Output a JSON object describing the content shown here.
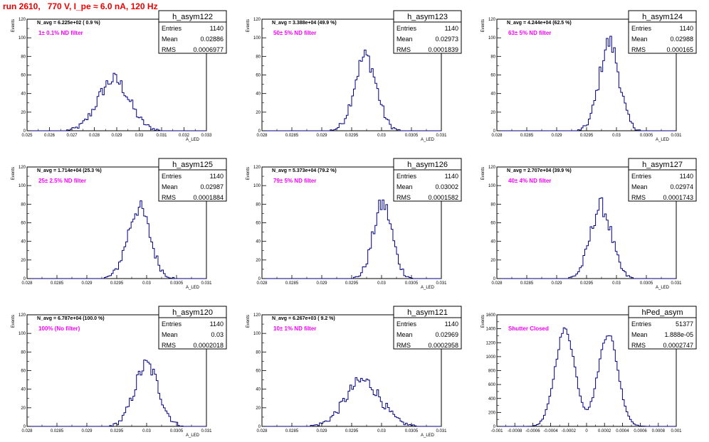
{
  "page": {
    "title": "run 2610,   770 V, I_pe ≈ 6.0 nA, 120 Hz",
    "title_color": "#ee0000",
    "histogram_color": "#000080",
    "annotation_color": "#ff00ff"
  },
  "chart_data": [
    {
      "type": "histogram",
      "name": "h_asym122",
      "ylabel": "Events",
      "xlabel": "A_LED",
      "navg": "N_avg = 6.225e+02 ( 0.9 %)",
      "filter": "1± 0.1% ND filter",
      "stats": [
        [
          "Entries",
          "1140"
        ],
        [
          "Mean",
          "0.02886"
        ],
        [
          "RMS",
          "0.0006977"
        ]
      ],
      "xlim": [
        0.025,
        0.033
      ],
      "ylim": [
        0,
        120
      ],
      "xticks": [
        "0.025",
        "0.026",
        "0.027",
        "0.028",
        "0.029",
        "0.03",
        "0.031",
        "0.032",
        "0.033"
      ],
      "yticks": [
        "0",
        "20",
        "40",
        "60",
        "80",
        "100",
        "120"
      ],
      "mean": 0.02886,
      "rms": 0.0006977,
      "peak": 55
    },
    {
      "type": "histogram",
      "name": "h_asym123",
      "ylabel": "Events",
      "xlabel": "A_LED",
      "navg": "N_avg = 3.388e+04 (49.9 %)",
      "filter": "50± 5% ND filter",
      "stats": [
        [
          "Entries",
          "1140"
        ],
        [
          "Mean",
          "0.02973"
        ],
        [
          "RMS",
          "0.0001839"
        ]
      ],
      "xlim": [
        0.028,
        0.031
      ],
      "ylim": [
        0,
        120
      ],
      "xticks": [
        "0.028",
        "0.0285",
        "0.029",
        "0.0295",
        "0.03",
        "0.0305",
        "0.031"
      ],
      "yticks": [
        "0",
        "20",
        "40",
        "60",
        "80",
        "100",
        "120"
      ],
      "mean": 0.02973,
      "rms": 0.0001839,
      "peak": 80
    },
    {
      "type": "histogram",
      "name": "h_asym124",
      "ylabel": "Events",
      "xlabel": "A_LED",
      "navg": "N_avg = 4.244e+04 (62.5 %)",
      "filter": "63± 5% ND filter",
      "stats": [
        [
          "Entries",
          "1140"
        ],
        [
          "Mean",
          "0.02988"
        ],
        [
          "RMS",
          "0.000165"
        ]
      ],
      "xlim": [
        0.028,
        0.031
      ],
      "ylim": [
        0,
        120
      ],
      "xticks": [
        "0.028",
        "0.0285",
        "0.029",
        "0.0295",
        "0.03",
        "0.0305",
        "0.031"
      ],
      "yticks": [
        "0",
        "20",
        "40",
        "60",
        "80",
        "100",
        "120"
      ],
      "mean": 0.02988,
      "rms": 0.000165,
      "peak": 95
    },
    {
      "type": "histogram",
      "name": "h_asym125",
      "ylabel": "Events",
      "xlabel": "A_LED",
      "navg": "N_avg = 1.714e+04 (25.3 %)",
      "filter": "25± 2.5% ND filter",
      "stats": [
        [
          "Entries",
          "1140"
        ],
        [
          "Mean",
          "0.02987"
        ],
        [
          "RMS",
          "0.0001884"
        ]
      ],
      "xlim": [
        0.028,
        0.031
      ],
      "ylim": [
        0,
        120
      ],
      "xticks": [
        "0.028",
        "0.0285",
        "0.029",
        "0.0295",
        "0.03",
        "0.0305",
        "0.031"
      ],
      "yticks": [
        "0",
        "20",
        "40",
        "60",
        "80",
        "100",
        "120"
      ],
      "mean": 0.02987,
      "rms": 0.0001884,
      "peak": 76
    },
    {
      "type": "histogram",
      "name": "h_asym126",
      "ylabel": "Events",
      "xlabel": "A_LED",
      "navg": "N_avg = 5.373e+04 (79.2 %)",
      "filter": "79± 5% ND filter",
      "stats": [
        [
          "Entries",
          "1140"
        ],
        [
          "Mean",
          "0.03002"
        ],
        [
          "RMS",
          "0.0001582"
        ]
      ],
      "xlim": [
        0.028,
        0.031
      ],
      "ylim": [
        0,
        120
      ],
      "xticks": [
        "0.028",
        "0.0285",
        "0.029",
        "0.0295",
        "0.03",
        "0.0305",
        "0.031"
      ],
      "yticks": [
        "0",
        "20",
        "40",
        "60",
        "80",
        "100",
        "120"
      ],
      "mean": 0.03002,
      "rms": 0.0001582,
      "peak": 80
    },
    {
      "type": "histogram",
      "name": "h_asym127",
      "ylabel": "Events",
      "xlabel": "A_LED",
      "navg": "N_avg = 2.707e+04 (39.9 %)",
      "filter": "40± 4% ND filter",
      "stats": [
        [
          "Entries",
          "1140"
        ],
        [
          "Mean",
          "0.02974"
        ],
        [
          "RMS",
          "0.0001743"
        ]
      ],
      "xlim": [
        0.028,
        0.031
      ],
      "ylim": [
        0,
        120
      ],
      "xticks": [
        "0.028",
        "0.0285",
        "0.029",
        "0.0295",
        "0.03",
        "0.0305",
        "0.031"
      ],
      "yticks": [
        "0",
        "20",
        "40",
        "60",
        "80",
        "100",
        "120"
      ],
      "mean": 0.02974,
      "rms": 0.0001743,
      "peak": 78
    },
    {
      "type": "histogram",
      "name": "h_asym120",
      "ylabel": "Events",
      "xlabel": "A_LED",
      "navg": "N_avg = 6.787e+04 (100.0 %)",
      "filter": "100% (No filter)",
      "stats": [
        [
          "Entries",
          "1140"
        ],
        [
          "Mean",
          "0.03"
        ],
        [
          "RMS",
          "0.0002018"
        ]
      ],
      "xlim": [
        0.028,
        0.031
      ],
      "ylim": [
        0,
        120
      ],
      "xticks": [
        "0.028",
        "0.0285",
        "0.029",
        "0.0295",
        "0.03",
        "0.0305",
        "0.031"
      ],
      "yticks": [
        "0",
        "20",
        "40",
        "60",
        "80",
        "100",
        "120"
      ],
      "mean": 0.03,
      "rms": 0.0002018,
      "peak": 66
    },
    {
      "type": "histogram",
      "name": "h_asym121",
      "ylabel": "Events",
      "xlabel": "A_LED",
      "navg": "N_avg = 6.267e+03 ( 9.2 %)",
      "filter": "10± 1% ND filter",
      "stats": [
        [
          "Entries",
          "1140"
        ],
        [
          "Mean",
          "0.02969"
        ],
        [
          "RMS",
          "0.0002958"
        ]
      ],
      "xlim": [
        0.028,
        0.031
      ],
      "ylim": [
        0,
        120
      ],
      "xticks": [
        "0.028",
        "0.0285",
        "0.029",
        "0.0295",
        "0.03",
        "0.0305",
        "0.031"
      ],
      "yticks": [
        "0",
        "20",
        "40",
        "60",
        "80",
        "100",
        "120"
      ],
      "mean": 0.02969,
      "rms": 0.0002958,
      "peak": 49
    },
    {
      "type": "histogram",
      "name": "hPed_asym",
      "ylabel": "Events",
      "xlabel": "",
      "navg": "",
      "filter": "Shutter Closed",
      "stats": [
        [
          "Entries",
          "51377"
        ],
        [
          "Mean",
          "1.888e-05"
        ],
        [
          "RMS",
          "0.0002747"
        ]
      ],
      "xlim": [
        -0.001,
        0.001
      ],
      "ylim": [
        0,
        1600
      ],
      "xticks": [
        "-0.001",
        "-0.0008",
        "-0.0006",
        "-0.0004",
        "-0.0002",
        "0",
        "0.0002",
        "0.0004",
        "0.0006",
        "0.0008",
        "0.001"
      ],
      "yticks": [
        "0",
        "200",
        "400",
        "600",
        "800",
        "1000",
        "1200",
        "1400",
        "1600"
      ],
      "bimodal": [
        [
          -0.00024,
          1390,
          0.00011
        ],
        [
          0.00024,
          1330,
          0.00011
        ]
      ]
    }
  ]
}
